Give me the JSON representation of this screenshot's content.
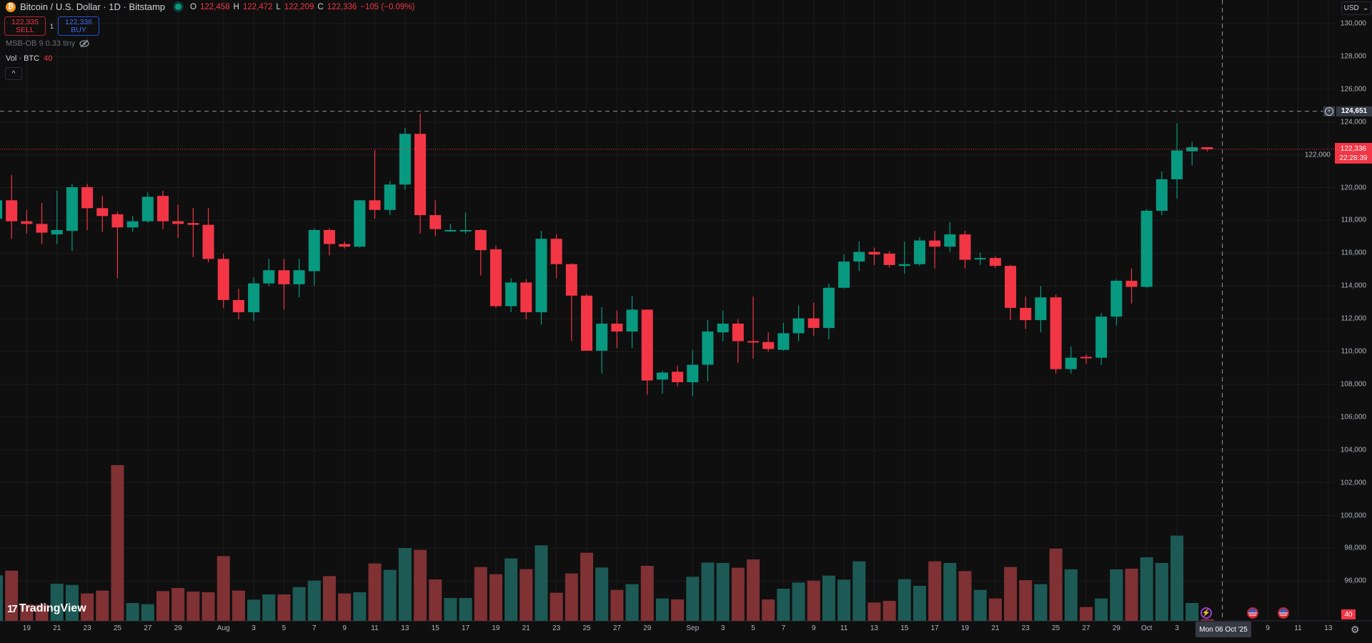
{
  "header": {
    "symbol_title": "Bitcoin / U.S. Dollar · 1D · Bitstamp",
    "btc_icon_glyph": "₿",
    "ohlc": {
      "o_label": "O",
      "o": "122,458",
      "h_label": "H",
      "h": "122,472",
      "l_label": "L",
      "l": "122,209",
      "c_label": "C",
      "c": "122,336",
      "change": "−105 (−0.09%)"
    },
    "sell_price": "122,335",
    "sell_label": "SELL",
    "quantity": "1",
    "buy_price": "122,336",
    "buy_label": "BUY",
    "indicator": "MSB-OB 9 0.33 tiny",
    "volume_label": "Vol · BTC",
    "volume_value": "40",
    "collapse_glyph": "^"
  },
  "currency": {
    "label": "USD"
  },
  "price_axis": {
    "ticks": [
      "130,000",
      "128,000",
      "126,000",
      "124,000",
      "122,000",
      "120,000",
      "118,000",
      "116,000",
      "114,000",
      "112,000",
      "110,000",
      "108,000",
      "106,000",
      "104,000",
      "102,000",
      "100,000",
      "98,000",
      "96,000"
    ],
    "tick_values": [
      130000,
      128000,
      126000,
      124000,
      122000,
      120000,
      118000,
      116000,
      114000,
      112000,
      110000,
      108000,
      106000,
      104000,
      102000,
      100000,
      98000,
      96000
    ],
    "crosshair_price": "124,651",
    "crosshair_value": 124651,
    "last_price": "122,336",
    "last_value": 122336,
    "countdown": "22:28:39",
    "volume_badge": "40"
  },
  "time_axis": {
    "labels": [
      {
        "t": "19",
        "i": 2
      },
      {
        "t": "21",
        "i": 4
      },
      {
        "t": "23",
        "i": 6
      },
      {
        "t": "25",
        "i": 8
      },
      {
        "t": "27",
        "i": 10
      },
      {
        "t": "29",
        "i": 12
      },
      {
        "t": "Aug",
        "i": 15
      },
      {
        "t": "3",
        "i": 17
      },
      {
        "t": "5",
        "i": 19
      },
      {
        "t": "7",
        "i": 21
      },
      {
        "t": "9",
        "i": 23
      },
      {
        "t": "11",
        "i": 25
      },
      {
        "t": "13",
        "i": 27
      },
      {
        "t": "15",
        "i": 29
      },
      {
        "t": "17",
        "i": 31
      },
      {
        "t": "19",
        "i": 33
      },
      {
        "t": "21",
        "i": 35
      },
      {
        "t": "23",
        "i": 37
      },
      {
        "t": "25",
        "i": 39
      },
      {
        "t": "27",
        "i": 41
      },
      {
        "t": "29",
        "i": 43
      },
      {
        "t": "Sep",
        "i": 46
      },
      {
        "t": "3",
        "i": 48
      },
      {
        "t": "5",
        "i": 50
      },
      {
        "t": "7",
        "i": 52
      },
      {
        "t": "9",
        "i": 54
      },
      {
        "t": "11",
        "i": 56
      },
      {
        "t": "13",
        "i": 58
      },
      {
        "t": "15",
        "i": 60
      },
      {
        "t": "17",
        "i": 62
      },
      {
        "t": "19",
        "i": 64
      },
      {
        "t": "21",
        "i": 66
      },
      {
        "t": "23",
        "i": 68
      },
      {
        "t": "25",
        "i": 70
      },
      {
        "t": "27",
        "i": 72
      },
      {
        "t": "29",
        "i": 74
      },
      {
        "t": "Oct",
        "i": 76
      },
      {
        "t": "3",
        "i": 78
      },
      {
        "t": "9",
        "i": 84
      },
      {
        "t": "11",
        "i": 86
      },
      {
        "t": "13",
        "i": 88
      }
    ],
    "crosshair_date": "Mon 06 Oct '25",
    "crosshair_index": 81
  },
  "branding": {
    "logo_mark": "17",
    "logo_text": "TradingView"
  },
  "colors": {
    "up": "#089981",
    "down": "#f23645",
    "vol_up": "#1d5a55",
    "vol_down": "#7f3134",
    "bg": "#0f0f0f",
    "grid": "#1c1c1c"
  },
  "chart_data": {
    "type": "candlestick",
    "first_date": "Jul 17",
    "ohlc": [
      [
        118102,
        119436,
        117942,
        119223
      ],
      [
        119223,
        120770,
        116875,
        117942
      ],
      [
        117942,
        118636,
        117196,
        117782
      ],
      [
        117782,
        119063,
        116555,
        117249
      ],
      [
        117142,
        119810,
        116555,
        117409
      ],
      [
        117356,
        120236,
        116129,
        120023
      ],
      [
        120023,
        120236,
        117409,
        118743
      ],
      [
        118743,
        119490,
        117302,
        118263
      ],
      [
        118369,
        118529,
        114475,
        117569
      ],
      [
        117569,
        118263,
        117302,
        117942
      ],
      [
        117942,
        119703,
        117836,
        119436
      ],
      [
        119490,
        119810,
        117462,
        117942
      ],
      [
        117942,
        118956,
        116929,
        117782
      ],
      [
        117836,
        118743,
        115755,
        117729
      ],
      [
        117729,
        118743,
        115435,
        115648
      ],
      [
        115648,
        115968,
        112661,
        113141
      ],
      [
        113141,
        113834,
        111967,
        112394
      ],
      [
        112394,
        114528,
        111861,
        114155
      ],
      [
        114155,
        115648,
        113995,
        114955
      ],
      [
        114955,
        115648,
        112554,
        114101
      ],
      [
        114101,
        115648,
        113301,
        114955
      ],
      [
        114901,
        117516,
        113995,
        117409
      ],
      [
        117409,
        117516,
        115862,
        116555
      ],
      [
        116555,
        116715,
        116289,
        116395
      ],
      [
        116395,
        119223,
        116342,
        119223
      ],
      [
        119223,
        122264,
        118102,
        118636
      ],
      [
        118636,
        120397,
        118316,
        120183
      ],
      [
        120183,
        123651,
        119863,
        123277
      ],
      [
        123277,
        124504,
        117196,
        118316
      ],
      [
        118316,
        119223,
        117035,
        117462
      ],
      [
        117356,
        117782,
        117302,
        117409
      ],
      [
        117356,
        118476,
        117196,
        117409
      ],
      [
        117409,
        117462,
        114635,
        116182
      ],
      [
        116235,
        116449,
        112661,
        112767
      ],
      [
        112767,
        114475,
        112394,
        114208
      ],
      [
        114208,
        114421,
        111967,
        112394
      ],
      [
        112394,
        117356,
        111647,
        116875
      ],
      [
        116875,
        117142,
        114475,
        115328
      ],
      [
        115328,
        115382,
        110633,
        113408
      ],
      [
        113408,
        113514,
        110047,
        110047
      ],
      [
        110047,
        112714,
        108660,
        111700
      ],
      [
        111700,
        112501,
        110207,
        111220
      ],
      [
        111220,
        113408,
        110207,
        112554
      ],
      [
        112554,
        112554,
        107379,
        108233
      ],
      [
        108286,
        108820,
        107432,
        108713
      ],
      [
        108766,
        109140,
        107859,
        108126
      ],
      [
        108126,
        110100,
        107272,
        109193
      ],
      [
        109193,
        111914,
        108179,
        111220
      ],
      [
        111167,
        112501,
        110633,
        111700
      ],
      [
        111700,
        111967,
        109300,
        110633
      ],
      [
        110633,
        113354,
        109566,
        110580
      ],
      [
        110580,
        111167,
        109993,
        110153
      ],
      [
        110100,
        111754,
        110047,
        111114
      ],
      [
        111114,
        112821,
        110633,
        112021
      ],
      [
        112021,
        112981,
        110954,
        111434
      ],
      [
        111434,
        114155,
        110740,
        113888
      ],
      [
        113888,
        115915,
        113834,
        115488
      ],
      [
        115488,
        116715,
        114901,
        116075
      ],
      [
        116075,
        116342,
        115275,
        115915
      ],
      [
        115968,
        116129,
        115115,
        115275
      ],
      [
        115222,
        116715,
        114741,
        115328
      ],
      [
        115328,
        116982,
        115222,
        116769
      ],
      [
        116769,
        117356,
        115062,
        116395
      ],
      [
        116395,
        117889,
        116075,
        117142
      ],
      [
        117142,
        117356,
        115062,
        115595
      ],
      [
        115648,
        116022,
        115275,
        115702
      ],
      [
        115702,
        115808,
        115115,
        115222
      ],
      [
        115222,
        115275,
        111914,
        112661
      ],
      [
        112661,
        113354,
        111380,
        111914
      ],
      [
        111914,
        113995,
        111167,
        113301
      ],
      [
        113301,
        113461,
        108660,
        108926
      ],
      [
        108926,
        110313,
        108660,
        109620
      ],
      [
        109673,
        109833,
        109246,
        109620
      ],
      [
        109620,
        112341,
        109193,
        112127
      ],
      [
        112127,
        114421,
        111594,
        114315
      ],
      [
        114315,
        115062,
        112928,
        113941
      ],
      [
        113941,
        118689,
        113888,
        118583
      ],
      [
        118583,
        120983,
        118316,
        120503
      ],
      [
        120503,
        123918,
        119330,
        122264
      ],
      [
        122210,
        122797,
        121357,
        122458
      ],
      [
        122458,
        122472,
        122209,
        122336
      ]
    ],
    "volume_relative": [
      191,
      211,
      68,
      68,
      156,
      151,
      115,
      127,
      654,
      75,
      70,
      125,
      138,
      123,
      120,
      272,
      127,
      89,
      111,
      111,
      142,
      169,
      188,
      115,
      120,
      241,
      214,
      306,
      298,
      174,
      96,
      96,
      226,
      196,
      262,
      217,
      317,
      118,
      199,
      286,
      224,
      130,
      154,
      231,
      94,
      90,
      185,
      245,
      243,
      223,
      258,
      90,
      135,
      161,
      169,
      190,
      173,
      250,
      77,
      84,
      175,
      147,
      250,
      243,
      209,
      130,
      94,
      226,
      171,
      154,
      303,
      216,
      58,
      94,
      216,
      219,
      267,
      243,
      358,
      75,
      7
    ],
    "ylim": [
      94000,
      130000
    ],
    "grid": true
  }
}
